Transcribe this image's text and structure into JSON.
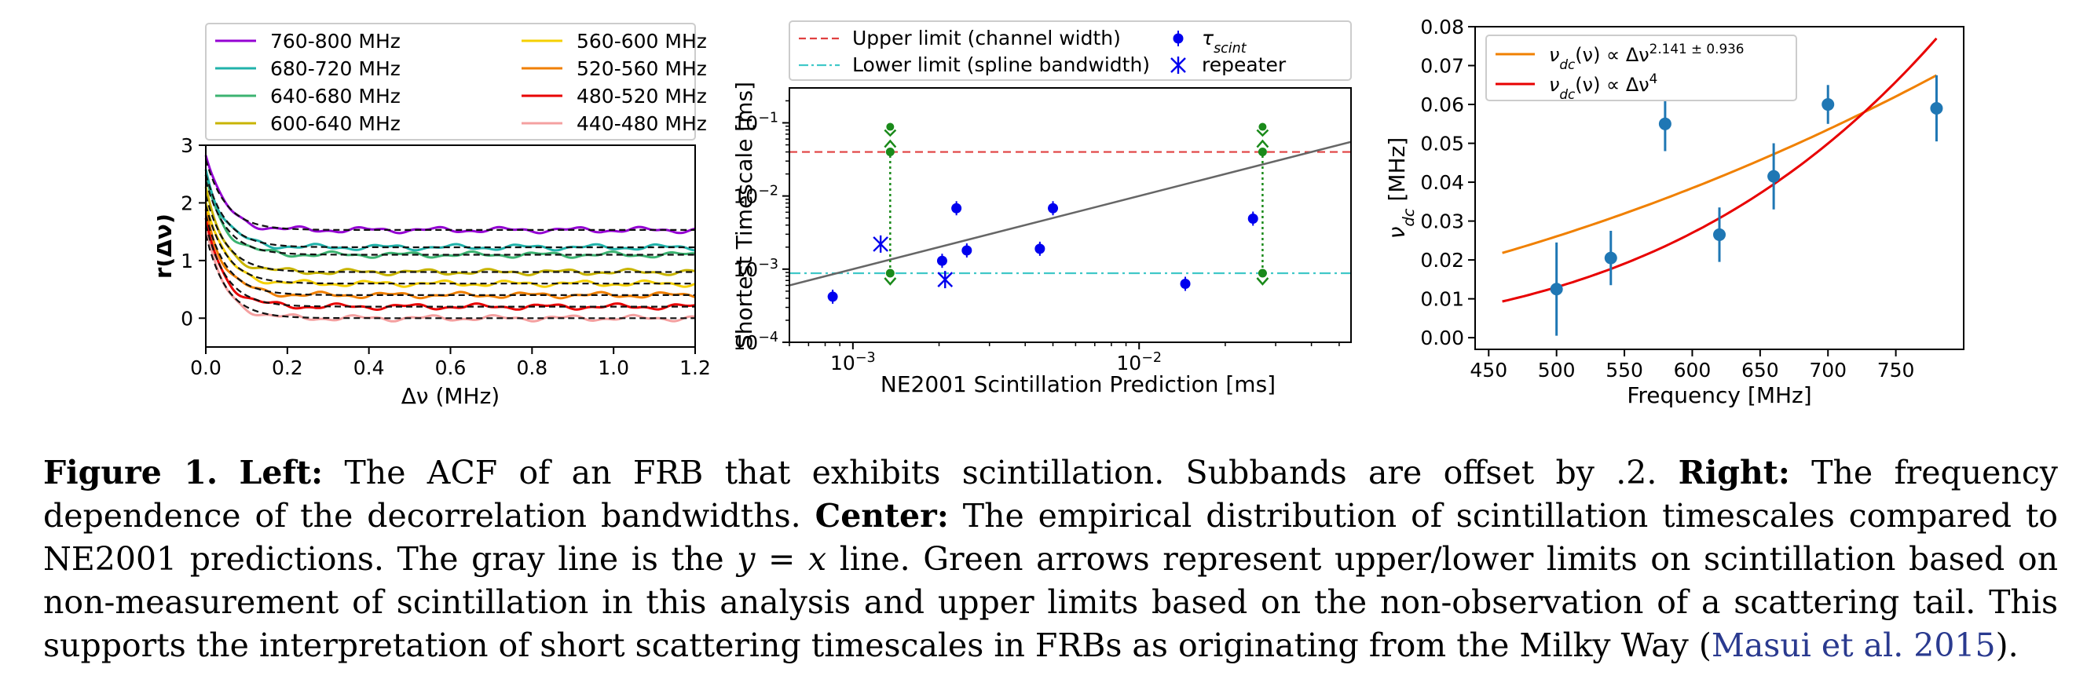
{
  "figure": {
    "left": {
      "chart_data": {
        "type": "line",
        "xlabel": "Δν (MHz)",
        "ylabel": "r(Δν)",
        "xlim": [
          0.0,
          1.2
        ],
        "ylim": [
          -0.5,
          3.0
        ],
        "xticks": [
          "0.0",
          "0.2",
          "0.4",
          "0.6",
          "0.8",
          "1.0",
          "1.2"
        ],
        "yticks": [
          "0",
          "1",
          "2",
          "3"
        ],
        "legend_position": "top",
        "series": [
          {
            "name": "760-800 MHz",
            "color": "#9400d3",
            "offset": 1.4,
            "plateau": 0.13
          },
          {
            "name": "680-720 MHz",
            "color": "#20b2aa",
            "offset": 1.2,
            "plateau": 0.03
          },
          {
            "name": "640-680 MHz",
            "color": "#3cb371",
            "offset": 1.0,
            "plateau": 0.1
          },
          {
            "name": "600-640 MHz",
            "color": "#c8b400",
            "offset": 0.8,
            "plateau": 0.0
          },
          {
            "name": "560-600 MHz",
            "color": "#f5d000",
            "offset": 0.6,
            "plateau": 0.0
          },
          {
            "name": "520-560 MHz",
            "color": "#f07f00",
            "offset": 0.4,
            "plateau": 0.0
          },
          {
            "name": "480-520 MHz",
            "color": "#e80000",
            "offset": 0.2,
            "plateau": 0.0
          },
          {
            "name": "440-480 MHz",
            "color": "#f4a0a0",
            "offset": 0.0,
            "plateau": 0.0
          }
        ]
      }
    },
    "center": {
      "chart_data": {
        "type": "scatter",
        "xlabel": "NE2001 Scintillation Prediction [ms]",
        "ylabel": "Shortest Timescale [ms]",
        "xscale": "log",
        "yscale": "log",
        "xlim": [
          0.0006,
          0.055
        ],
        "ylim": [
          0.0001,
          0.3
        ],
        "xticks": [
          {
            "value": 0.001,
            "base": "10",
            "exp": "−3"
          },
          {
            "value": 0.01,
            "base": "10",
            "exp": "−2"
          }
        ],
        "yticks": [
          {
            "value": 0.0001,
            "base": "10",
            "exp": "−4"
          },
          {
            "value": 0.001,
            "base": "10",
            "exp": "−3"
          },
          {
            "value": 0.01,
            "base": "10",
            "exp": "−2"
          },
          {
            "value": 0.1,
            "base": "10",
            "exp": "−1"
          }
        ],
        "legend": [
          {
            "label": "Upper limit (channel width)",
            "color": "#e04040",
            "style": "dashed"
          },
          {
            "label": "Lower limit (spline bandwidth)",
            "color": "#40c8c8",
            "style": "dashdot"
          },
          {
            "label": "τ",
            "sub": "scint",
            "color": "#0000ee",
            "marker": "dot"
          },
          {
            "label": "repeater",
            "color": "#0000ee",
            "marker": "x"
          }
        ],
        "upper_limit": 0.04,
        "lower_limit": 0.00088,
        "identity_line": true,
        "tau_scint": [
          {
            "x": 0.00085,
            "y": 0.00042
          },
          {
            "x": 0.00205,
            "y": 0.0013
          },
          {
            "x": 0.0023,
            "y": 0.0068
          },
          {
            "x": 0.0025,
            "y": 0.0018
          },
          {
            "x": 0.0045,
            "y": 0.0019
          },
          {
            "x": 0.005,
            "y": 0.0068
          },
          {
            "x": 0.0145,
            "y": 0.00063
          },
          {
            "x": 0.025,
            "y": 0.0049
          }
        ],
        "repeater": [
          {
            "x": 0.00125,
            "y": 0.0022
          },
          {
            "x": 0.0021,
            "y": 0.00072
          }
        ],
        "limit_arrows": [
          {
            "x": 0.00135,
            "ymin": 0.00088,
            "ymax": 0.04
          },
          {
            "x": 0.027,
            "ymin": 0.00088,
            "ymax": 0.04
          }
        ]
      }
    },
    "right": {
      "chart_data": {
        "type": "scatter",
        "xlabel": "Frequency [MHz]",
        "ylabel": "ν",
        "ylabel_sub": "dc",
        "ylabel_unit": " [MHz]",
        "xlim": [
          440,
          800
        ],
        "ylim": [
          -0.003,
          0.08
        ],
        "xticks": [
          "450",
          "500",
          "550",
          "600",
          "650",
          "700",
          "750"
        ],
        "yticks": [
          "0.00",
          "0.01",
          "0.02",
          "0.03",
          "0.04",
          "0.05",
          "0.06",
          "0.07",
          "0.08"
        ],
        "legend": [
          {
            "label": "ν",
            "sub": "dc",
            "mid": "(ν) ∝ Δν",
            "sup": "2.141 ± 0.936",
            "color": "#f08000"
          },
          {
            "label": "ν",
            "sub": "dc",
            "mid": "(ν) ∝ Δν",
            "sup": "4",
            "color": "#e80000"
          }
        ],
        "points": [
          {
            "x": 500,
            "y": 0.0125,
            "err": 0.012
          },
          {
            "x": 540,
            "y": 0.0205,
            "err": 0.007
          },
          {
            "x": 580,
            "y": 0.055,
            "err": 0.007
          },
          {
            "x": 620,
            "y": 0.0265,
            "err": 0.007
          },
          {
            "x": 660,
            "y": 0.0415,
            "err": 0.0085
          },
          {
            "x": 700,
            "y": 0.06,
            "err": 0.005
          },
          {
            "x": 780,
            "y": 0.059,
            "err": 0.0085
          }
        ],
        "fit_powerlaw": {
          "exponent": 2.141,
          "anchor_x": 780,
          "anchor_y": 0.0675,
          "color": "#f08000"
        },
        "fit_quartic": {
          "exponent": 4,
          "anchor_x": 780,
          "anchor_y": 0.077,
          "color": "#e80000"
        },
        "fit_x_range": [
          460,
          780
        ]
      }
    }
  },
  "caption": {
    "label": "Figure 1.",
    "left_head": "Left:",
    "left_text": " The ACF of an FRB that exhibits scintillation. Subbands are offset by .2. ",
    "right_head": "Right:",
    "right_text": " The frequency dependence of the decorrelation bandwidths. ",
    "center_head": "Center:",
    "center_text_1": " The empirical distribution of scintillation timescales compared to NE2001 predictions. The gray line is the ",
    "math": "y = x",
    "center_text_2": " line.  Green arrows represent upper/lower limits on scintillation based on non-measurement of scintillation in this analysis and upper limits based on the non-observation of a scattering tail. This supports the interpretation of short scattering timescales in FRBs as originating from the Milky Way (",
    "citation": "Masui et al. 2015",
    "end": ")."
  }
}
